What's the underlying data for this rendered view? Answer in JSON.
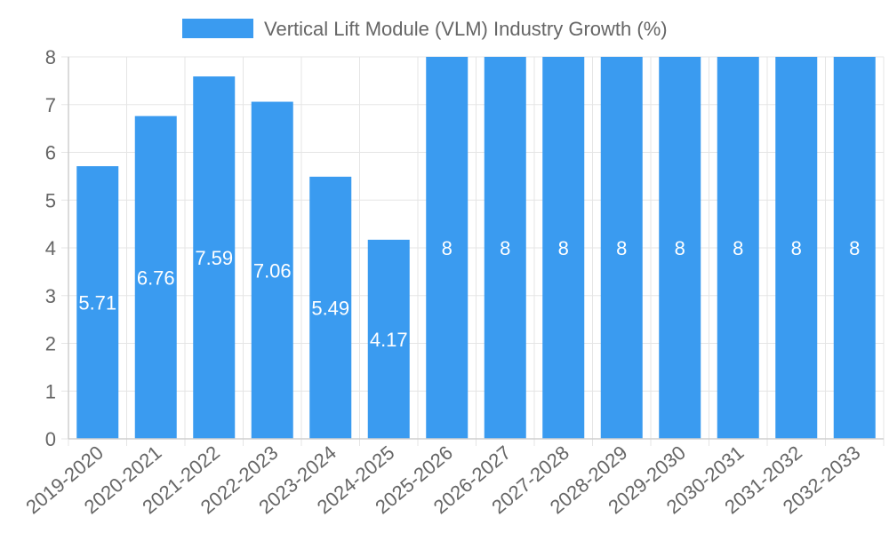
{
  "chart_data": {
    "type": "bar",
    "title": "",
    "xlabel": "",
    "ylabel": "",
    "categories": [
      "2019-2020",
      "2020-2021",
      "2021-2022",
      "2022-2023",
      "2023-2024",
      "2024-2025",
      "2025-2026",
      "2026-2027",
      "2027-2028",
      "2028-2029",
      "2029-2030",
      "2030-2031",
      "2031-2032",
      "2032-2033"
    ],
    "series": [
      {
        "name": "Vertical Lift Module (VLM) Industry Growth (%)",
        "values": [
          5.71,
          6.76,
          7.59,
          7.06,
          5.49,
          4.17,
          8,
          8,
          8,
          8,
          8,
          8,
          8,
          8
        ],
        "labels": [
          "5.71",
          "6.76",
          "7.59",
          "7.06",
          "5.49",
          "4.17",
          "8",
          "8",
          "8",
          "8",
          "8",
          "8",
          "8",
          "8"
        ],
        "color": "#3a9bf0"
      }
    ],
    "ylim": [
      0,
      8
    ],
    "yticks": [
      "0",
      "1",
      "2",
      "3",
      "4",
      "5",
      "6",
      "7",
      "8"
    ],
    "legend_position": "top",
    "grid": true
  }
}
